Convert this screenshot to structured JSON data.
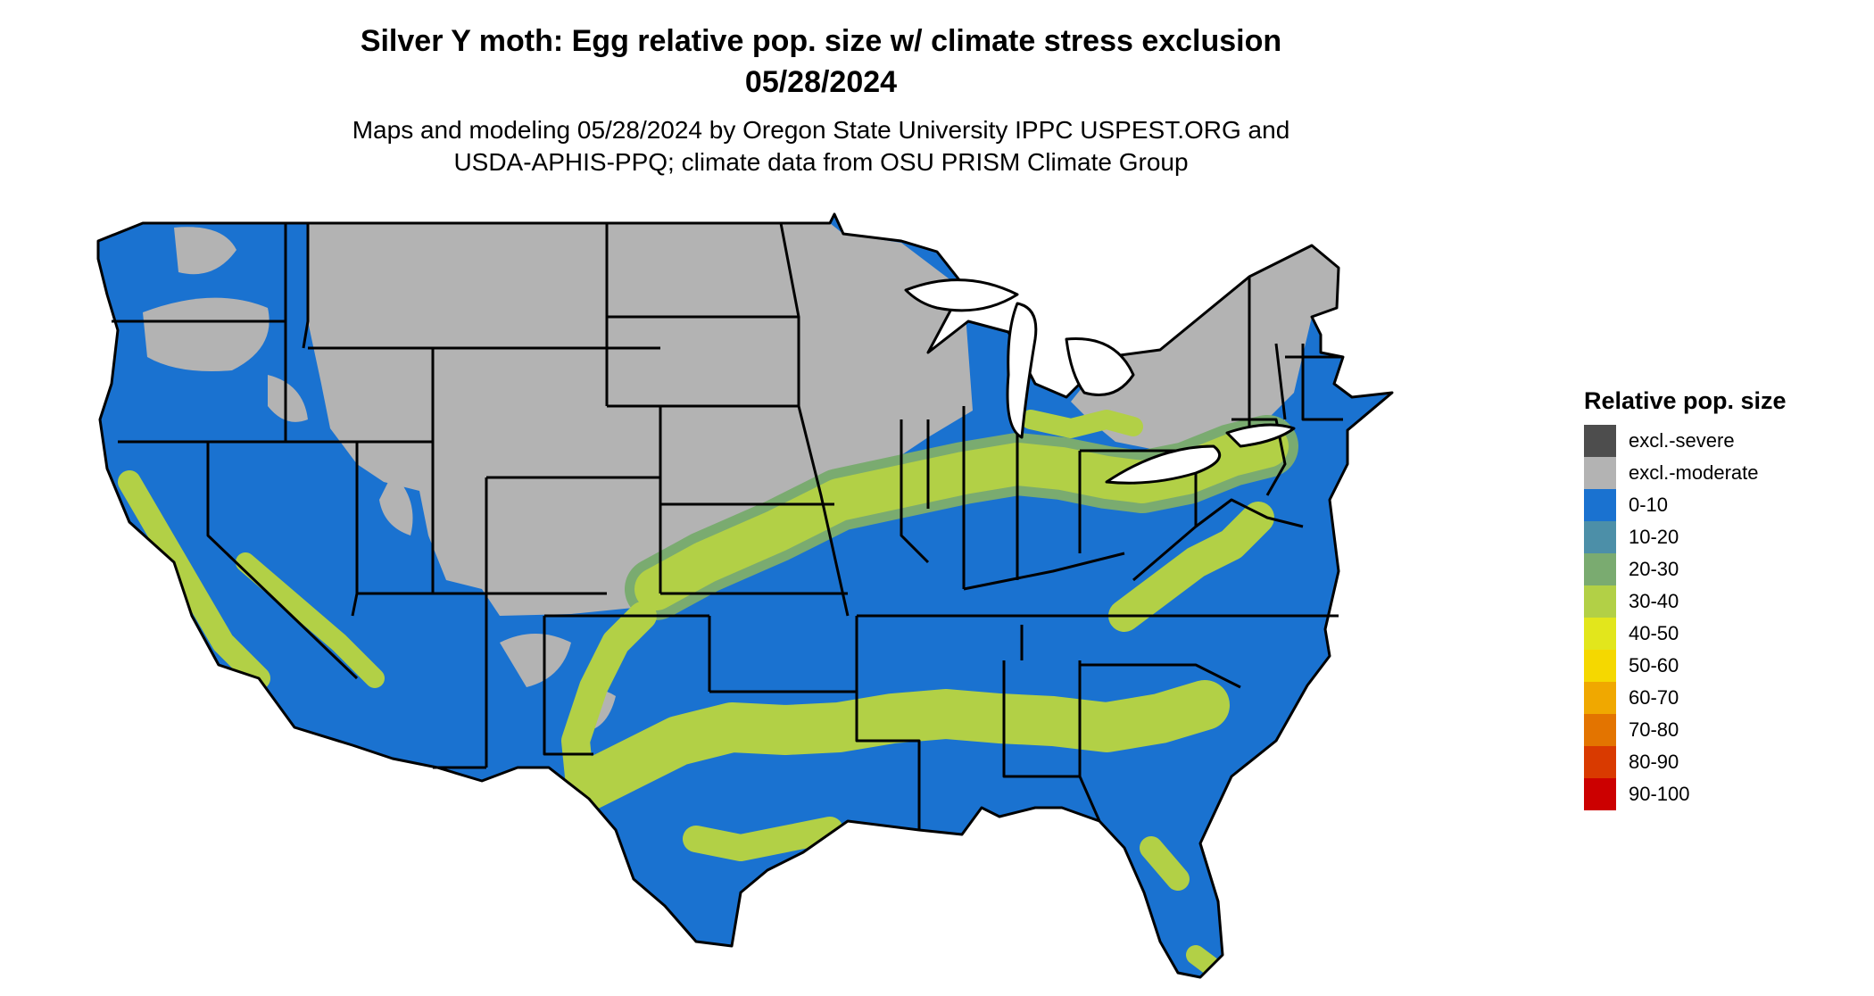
{
  "title": {
    "line1": "Silver Y moth: Egg relative pop. size w/ climate stress exclusion",
    "line2": "05/28/2024"
  },
  "subtitle": {
    "line1": "Maps and modeling 05/28/2024 by Oregon State University IPPC USPEST.ORG and",
    "line2": "USDA-APHIS-PPQ; climate data from OSU PRISM Climate Group"
  },
  "legend": {
    "title": "Relative pop. size",
    "items": [
      {
        "label": "excl.-severe",
        "color": "#4d4d4d"
      },
      {
        "label": "excl.-moderate",
        "color": "#b3b3b3"
      },
      {
        "label": "0-10",
        "color": "#1a72d0"
      },
      {
        "label": "10-20",
        "color": "#4c8fa8"
      },
      {
        "label": "20-30",
        "color": "#7aab70"
      },
      {
        "label": "30-40",
        "color": "#b2d046"
      },
      {
        "label": "40-50",
        "color": "#e2e61c"
      },
      {
        "label": "50-60",
        "color": "#f5d800"
      },
      {
        "label": "60-70",
        "color": "#f0a800"
      },
      {
        "label": "70-80",
        "color": "#e37400"
      },
      {
        "label": "80-90",
        "color": "#d93a00"
      },
      {
        "label": "90-100",
        "color": "#cc0000"
      }
    ]
  },
  "map_colors": {
    "land": "#1a72d0",
    "excluded": "#b3b3b3",
    "band": "#b2d046",
    "band_edge": "#7aab70",
    "border": "#000000"
  }
}
